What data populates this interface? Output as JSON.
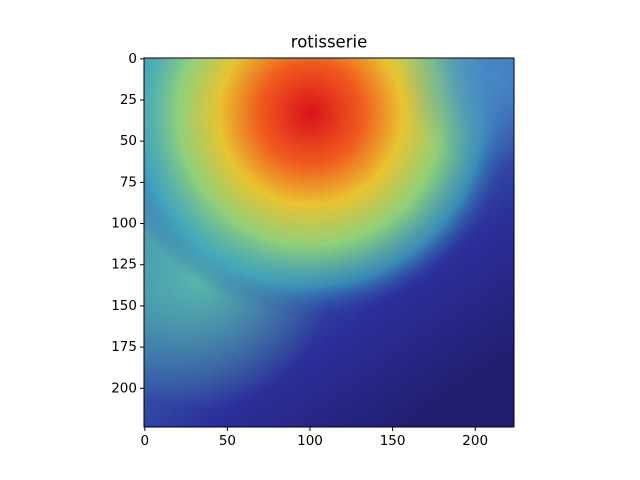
{
  "chart_data": {
    "type": "image",
    "title": "rotisserie",
    "xlim": [
      -0.5,
      223.5
    ],
    "ylim": [
      223.5,
      -0.5
    ],
    "xticks": [
      0,
      50,
      100,
      150,
      200
    ],
    "yticks": [
      0,
      25,
      50,
      75,
      100,
      125,
      150,
      175,
      200
    ]
  }
}
